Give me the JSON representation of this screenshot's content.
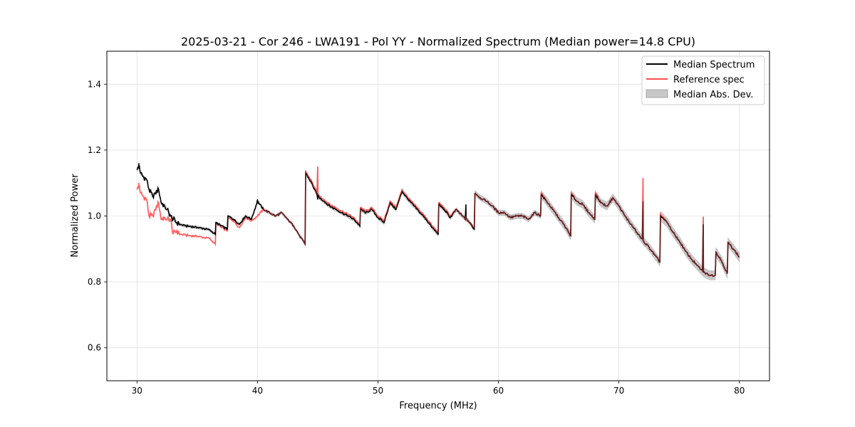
{
  "chart_data": {
    "type": "line",
    "title": "2025-03-21 - Cor 246 - LWA191 - Pol YY - Normalized Spectrum (Median power=14.8 CPU)",
    "xlabel": "Frequency (MHz)",
    "ylabel": "Normalized Power",
    "xlim": [
      27.5,
      82.5
    ],
    "ylim": [
      0.5,
      1.5
    ],
    "xticks": [
      30,
      40,
      50,
      60,
      70,
      80
    ],
    "yticks": [
      0.6,
      0.8,
      1.0,
      1.2,
      1.4
    ],
    "xtick_labels": [
      "30",
      "40",
      "50",
      "60",
      "70",
      "80"
    ],
    "ytick_labels": [
      "0.6",
      "0.8",
      "1.0",
      "1.2",
      "1.4"
    ],
    "grid": true,
    "legend_position": "top-right",
    "legend": {
      "median": "Median Spectrum",
      "reference": "Reference spec",
      "mad": "Median Abs. Dev."
    },
    "colors": {
      "median": "#000000",
      "reference": "#ff5050",
      "mad_fill": "#c8c8c8",
      "grid": "#e0e0e0"
    },
    "x": [
      30.0,
      30.2,
      30.3,
      30.5,
      30.8,
      31.0,
      31.3,
      31.5,
      31.8,
      32.0,
      32.3,
      32.5,
      32.8,
      33.0,
      33.3,
      33.5,
      34.0,
      34.5,
      35.0,
      35.5,
      36.0,
      36.5,
      36.55,
      37.0,
      37.5,
      37.55,
      38.0,
      38.5,
      39.0,
      39.5,
      40.0,
      40.5,
      41.0,
      41.5,
      42.0,
      42.5,
      43.0,
      43.5,
      43.95,
      44.0,
      44.5,
      45.0,
      45.5,
      46.0,
      46.5,
      47.0,
      47.5,
      48.0,
      48.5,
      48.55,
      49.0,
      49.5,
      50.0,
      50.5,
      51.0,
      51.5,
      52.0,
      52.5,
      53.0,
      53.5,
      54.0,
      54.5,
      55.0,
      55.05,
      55.5,
      56.0,
      56.5,
      57.0,
      57.5,
      58.0,
      58.05,
      58.5,
      59.0,
      59.5,
      60.0,
      60.5,
      61.0,
      61.5,
      62.0,
      62.5,
      63.0,
      63.5,
      63.55,
      64.0,
      64.5,
      65.0,
      65.5,
      66.0,
      66.05,
      66.5,
      67.0,
      67.5,
      68.0,
      68.05,
      68.5,
      69.0,
      69.5,
      70.0,
      70.5,
      71.0,
      71.5,
      72.0,
      72.5,
      73.0,
      73.4,
      73.45,
      74.0,
      74.5,
      75.0,
      75.5,
      76.0,
      76.5,
      77.0,
      77.5,
      78.0,
      78.05,
      78.5,
      79.0,
      79.05,
      79.5,
      80.0
    ],
    "series": [
      {
        "name": "Median Spectrum",
        "values": [
          1.14,
          1.15,
          1.13,
          1.12,
          1.11,
          1.08,
          1.06,
          1.07,
          1.08,
          1.04,
          1.03,
          1.02,
          1.0,
          0.99,
          0.98,
          0.975,
          0.97,
          0.968,
          0.965,
          0.962,
          0.958,
          0.945,
          0.98,
          0.97,
          0.96,
          1.0,
          0.99,
          0.975,
          1.0,
          0.99,
          1.045,
          1.02,
          1.01,
          1.0,
          1.01,
          0.99,
          0.97,
          0.94,
          0.915,
          1.13,
          1.1,
          1.06,
          1.045,
          1.03,
          1.02,
          1.01,
          1.0,
          0.99,
          0.97,
          1.02,
          1.01,
          1.02,
          0.995,
          0.98,
          1.04,
          1.02,
          1.075,
          1.05,
          1.03,
          1.01,
          0.99,
          0.965,
          0.945,
          1.035,
          1.02,
          0.995,
          1.02,
          1.0,
          0.985,
          0.96,
          1.07,
          1.055,
          1.045,
          1.03,
          1.01,
          1.01,
          0.995,
          1.0,
          1.0,
          0.99,
          1.01,
          1.0,
          1.065,
          1.045,
          1.02,
          0.995,
          0.97,
          0.94,
          1.065,
          1.045,
          1.035,
          1.01,
          0.99,
          1.065,
          1.04,
          1.03,
          1.055,
          1.03,
          1.0,
          0.975,
          0.95,
          0.925,
          0.905,
          0.88,
          0.86,
          1.0,
          0.98,
          0.95,
          0.925,
          0.895,
          0.87,
          0.85,
          0.83,
          0.82,
          0.82,
          0.89,
          0.865,
          0.825,
          0.92,
          0.9,
          0.875
        ],
        "mad": [
          0.004,
          0.004,
          0.004,
          0.004,
          0.004,
          0.004,
          0.004,
          0.004,
          0.004,
          0.004,
          0.004,
          0.004,
          0.004,
          0.004,
          0.004,
          0.004,
          0.004,
          0.004,
          0.004,
          0.004,
          0.004,
          0.004,
          0.004,
          0.004,
          0.004,
          0.004,
          0.004,
          0.004,
          0.004,
          0.004,
          0.004,
          0.004,
          0.004,
          0.004,
          0.004,
          0.004,
          0.004,
          0.004,
          0.004,
          0.006,
          0.006,
          0.006,
          0.006,
          0.006,
          0.006,
          0.006,
          0.006,
          0.006,
          0.006,
          0.006,
          0.006,
          0.006,
          0.006,
          0.006,
          0.006,
          0.006,
          0.006,
          0.006,
          0.006,
          0.006,
          0.006,
          0.006,
          0.006,
          0.006,
          0.006,
          0.006,
          0.006,
          0.006,
          0.006,
          0.006,
          0.008,
          0.008,
          0.008,
          0.008,
          0.008,
          0.008,
          0.008,
          0.008,
          0.008,
          0.008,
          0.008,
          0.008,
          0.012,
          0.012,
          0.012,
          0.012,
          0.012,
          0.012,
          0.012,
          0.012,
          0.012,
          0.012,
          0.012,
          0.012,
          0.012,
          0.012,
          0.012,
          0.012,
          0.012,
          0.012,
          0.012,
          0.012,
          0.012,
          0.012,
          0.012,
          0.014,
          0.014,
          0.014,
          0.014,
          0.014,
          0.014,
          0.014,
          0.014,
          0.014,
          0.014,
          0.014,
          0.014,
          0.014,
          0.014,
          0.014,
          0.014
        ]
      },
      {
        "name": "Reference spec",
        "values": [
          1.08,
          1.09,
          1.07,
          1.06,
          1.05,
          1.0,
          1.0,
          1.02,
          1.04,
          0.99,
          0.995,
          0.99,
          0.99,
          0.945,
          0.955,
          0.945,
          0.942,
          0.94,
          0.938,
          0.935,
          0.932,
          0.915,
          0.98,
          0.965,
          0.955,
          0.995,
          0.985,
          0.965,
          0.995,
          0.985,
          1.0,
          1.02,
          1.01,
          1.0,
          1.01,
          0.99,
          0.97,
          0.94,
          0.915,
          1.135,
          1.105,
          1.065,
          1.05,
          1.035,
          1.025,
          1.015,
          1.005,
          0.995,
          0.975,
          1.025,
          1.015,
          1.025,
          1.0,
          0.985,
          1.045,
          1.025,
          1.08,
          1.055,
          1.035,
          1.015,
          0.995,
          0.97,
          0.95,
          1.04,
          1.025,
          1.0,
          1.02,
          1.0,
          0.985,
          0.965,
          1.07,
          1.055,
          1.045,
          1.03,
          1.01,
          1.01,
          0.995,
          1.0,
          1.0,
          0.99,
          1.01,
          1.0,
          1.07,
          1.045,
          1.02,
          0.995,
          0.97,
          0.94,
          1.07,
          1.045,
          1.035,
          1.01,
          0.99,
          1.07,
          1.04,
          1.03,
          1.055,
          1.03,
          1.0,
          0.975,
          0.95,
          0.925,
          0.905,
          0.88,
          0.86,
          1.005,
          0.98,
          0.95,
          0.925,
          0.895,
          0.87,
          0.85,
          0.83,
          0.82,
          0.82,
          0.89,
          0.865,
          0.825,
          0.92,
          0.9,
          0.875
        ]
      }
    ],
    "spikes": [
      {
        "x": 30.15,
        "median": 1.16,
        "reference": 1.1
      },
      {
        "x": 40.0,
        "median": 1.05,
        "reference": 1.0
      },
      {
        "x": 45.0,
        "median": 1.05,
        "reference": 1.15
      },
      {
        "x": 57.3,
        "median": 1.035,
        "reference": 1.0
      },
      {
        "x": 72.0,
        "median": 1.045,
        "reference": 1.115
      },
      {
        "x": 77.0,
        "median": 0.975,
        "reference": 0.998
      }
    ]
  }
}
